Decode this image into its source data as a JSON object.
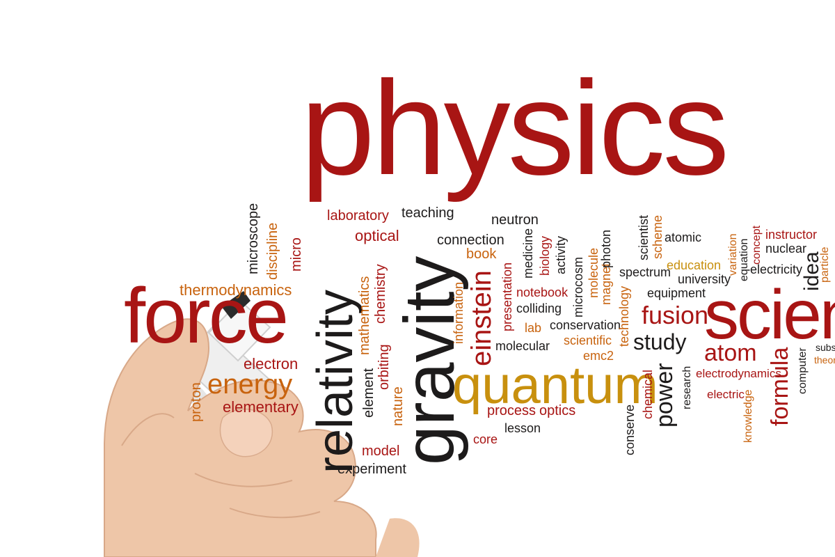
{
  "image": {
    "background_color": "#ffffff",
    "scene": "hand holding a marker writing a physics word cloud"
  },
  "colors": {
    "dark_red": "#a81514",
    "orange": "#c8630e",
    "gold": "#c8900e",
    "black": "#1d1b1b",
    "skin": "#eec6a8",
    "marker_white": "#f2f2f2",
    "marker_cap": "#2b2b2b"
  },
  "words": {
    "physics": "physics",
    "force": "force",
    "relativity": "relativity",
    "gravity": "gravity",
    "quantum": "quantum",
    "scien": "scien",
    "energy": "energy",
    "einstein": "einstein",
    "fusion": "fusion",
    "study": "study",
    "atom": "atom",
    "power": "power",
    "formula": "formula",
    "idea": "idea",
    "laboratory": "laboratory",
    "teaching": "teaching",
    "neutron": "neutron",
    "optical": "optical",
    "connection": "connection",
    "book": "book",
    "microscope": "microscope",
    "discipline": "discipline",
    "micro": "micro",
    "thermodynamics": "thermodynamics",
    "mathematics": "mathematics",
    "chemistry": "chemistry",
    "orbiting": "orbiting",
    "element": "element",
    "nature": "nature",
    "information": "information",
    "presentation": "presentation",
    "medicine": "medicine",
    "biology": "biology",
    "activity": "activity",
    "microcosm": "microcosm",
    "molecule": "molecule",
    "magnet": "magnet",
    "photon": "photon",
    "technology": "technology",
    "scientist": "scientist",
    "scheme": "scheme",
    "atomic": "atomic",
    "spectrum": "spectrum",
    "education": "education",
    "university": "university",
    "equipment": "equipment",
    "variation": "variation",
    "equation": "equation",
    "concept": "concept",
    "instructor": "instructor",
    "nuclear": "nuclear",
    "electricity": "electricity",
    "particle": "particle",
    "notebook": "notebook",
    "colliding": "colliding",
    "lab": "lab",
    "conservation": "conservation",
    "molecular": "molecular",
    "scientific": "scientific",
    "emc2": "emc2",
    "electron": "electron",
    "proton": "proton",
    "elementary": "elementary",
    "process": "process",
    "optics": "optics",
    "core": "core",
    "lesson": "lesson",
    "model": "model",
    "experiment": "experiment",
    "conserve": "conserve",
    "chemical": "chemical",
    "research": "research",
    "electrodynamics": "electrodynamics",
    "electric": "electric",
    "knowledge": "knowledge",
    "computer": "computer",
    "subs": "subs",
    "theor": "theor"
  }
}
